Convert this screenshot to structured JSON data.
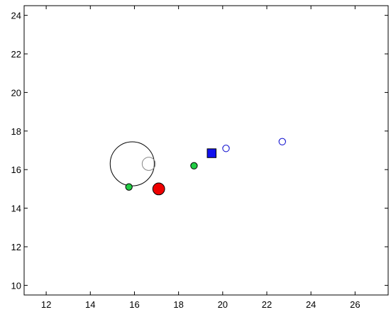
{
  "chart_data": {
    "type": "scatter",
    "title": "",
    "xlabel": "",
    "ylabel": "",
    "xlim": [
      11,
      27.5
    ],
    "ylim": [
      9.5,
      24.5
    ],
    "x_ticks": [
      12,
      14,
      16,
      18,
      20,
      22,
      24,
      26
    ],
    "y_ticks": [
      10,
      12,
      14,
      16,
      18,
      20,
      22,
      24
    ],
    "x_tick_labels": [
      "12",
      "14",
      "16",
      "18",
      "20",
      "22",
      "24",
      "26"
    ],
    "y_tick_labels": [
      "10",
      "12",
      "14",
      "16",
      "18",
      "20",
      "22",
      "24"
    ],
    "grid": false,
    "points": [
      {
        "x": 15.9,
        "y": 16.3,
        "r": 1.0,
        "shape": "circle",
        "fill": "none",
        "stroke": "#000000"
      },
      {
        "x": 16.65,
        "y": 16.3,
        "r": 0.3,
        "shape": "circle",
        "fill": "none",
        "stroke": "#888888"
      },
      {
        "x": 15.75,
        "y": 15.1,
        "r": 0.15,
        "shape": "circle",
        "fill": "#22cc44",
        "stroke": "#000000"
      },
      {
        "x": 17.1,
        "y": 15.0,
        "r": 0.27,
        "shape": "circle",
        "fill": "#ee0000",
        "stroke": "#000000"
      },
      {
        "x": 18.7,
        "y": 16.2,
        "r": 0.15,
        "shape": "circle",
        "fill": "#22cc44",
        "stroke": "#000000"
      },
      {
        "x": 19.5,
        "y": 16.85,
        "r": 0.2,
        "shape": "square",
        "fill": "#1111ee",
        "stroke": "#000000"
      },
      {
        "x": 20.15,
        "y": 17.1,
        "r": 0.15,
        "shape": "circle",
        "fill": "none",
        "stroke": "#0000cc"
      },
      {
        "x": 22.7,
        "y": 17.45,
        "r": 0.15,
        "shape": "circle",
        "fill": "none",
        "stroke": "#0000cc"
      }
    ]
  }
}
